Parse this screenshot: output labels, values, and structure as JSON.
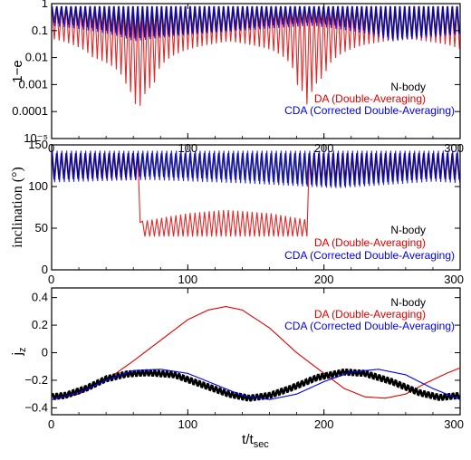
{
  "colors": {
    "nbody": "#000000",
    "da": "#e00000",
    "cda": "#0000ee"
  },
  "chart_data": [
    {
      "type": "line",
      "panel": "top",
      "ylabel": "1−e",
      "xlim": [
        0,
        300
      ],
      "ylim": [
        1e-05,
        1
      ],
      "yscale": "log",
      "x_ticks": [
        "0",
        "100",
        "200",
        "300"
      ],
      "y_ticks": [
        "1",
        "0.1",
        "0.01",
        "0.001",
        "0.0001",
        "10⁻⁵"
      ],
      "y_tick_values": [
        1,
        0.1,
        0.01,
        0.001,
        0.0001,
        1e-05
      ],
      "legend_position": "bottom-right",
      "oscillation_period_tsec": 3.5,
      "series": [
        {
          "name": "N-body",
          "color": "#000000",
          "x": [
            0,
            60,
            130,
            190,
            250,
            300
          ],
          "y_max": [
            0.8,
            0.8,
            0.8,
            0.8,
            0.8,
            0.8
          ],
          "y_min": [
            0.2,
            0.05,
            0.1,
            0.2,
            0.05,
            0.08
          ]
        },
        {
          "name": "DA (Double-Averaging)",
          "color": "#e00000",
          "x": [
            0,
            30,
            55,
            63,
            75,
            100,
            130,
            160,
            180,
            188,
            200,
            230,
            260,
            290,
            300
          ],
          "y_max": [
            0.8,
            0.8,
            0.8,
            0.8,
            0.8,
            0.8,
            0.8,
            0.8,
            0.8,
            0.8,
            0.8,
            0.8,
            0.8,
            0.8,
            0.8
          ],
          "y_min": [
            0.05,
            0.01,
            0.0008,
            2e-05,
            0.001,
            0.02,
            0.04,
            0.02,
            0.001,
            0.0001,
            0.002,
            0.03,
            0.05,
            0.03,
            0.02
          ]
        },
        {
          "name": "CDA (Corrected Double-Averaging)",
          "color": "#0000ee",
          "x": [
            0,
            60,
            130,
            190,
            250,
            300
          ],
          "y_max": [
            0.8,
            0.8,
            0.8,
            0.8,
            0.8,
            0.8
          ],
          "y_min": [
            0.15,
            0.04,
            0.09,
            0.15,
            0.04,
            0.07
          ]
        }
      ]
    },
    {
      "type": "line",
      "panel": "middle",
      "ylabel": "inclination (°)",
      "xlim": [
        0,
        300
      ],
      "ylim": [
        0,
        150
      ],
      "x_ticks": [
        "0",
        "100",
        "200",
        "300"
      ],
      "y_ticks": [
        "0",
        "50",
        "100",
        "150"
      ],
      "y_tick_values": [
        0,
        50,
        100,
        150
      ],
      "legend_position": "bottom-right",
      "oscillation_period_tsec": 3.5,
      "series": [
        {
          "name": "N-body",
          "color": "#000000",
          "x": [
            0,
            70,
            140,
            210,
            280,
            300
          ],
          "y_max": [
            140,
            140,
            140,
            140,
            140,
            140
          ],
          "y_min": [
            108,
            112,
            108,
            100,
            110,
            108
          ]
        },
        {
          "name": "DA (Double-Averaging)",
          "color": "#e00000",
          "x": [
            0,
            64,
            65,
            100,
            127,
            160,
            188,
            189,
            250,
            300
          ],
          "y_max": [
            140,
            140,
            58,
            68,
            72,
            68,
            60,
            140,
            140,
            140
          ],
          "y_min": [
            110,
            108,
            40,
            40,
            40,
            40,
            40,
            108,
            110,
            108
          ]
        },
        {
          "name": "CDA (Corrected Double-Averaging)",
          "color": "#0000ee",
          "x": [
            0,
            70,
            140,
            210,
            280,
            300
          ],
          "y_max": [
            143,
            143,
            143,
            143,
            143,
            143
          ],
          "y_min": [
            105,
            108,
            104,
            98,
            106,
            104
          ]
        }
      ]
    },
    {
      "type": "line",
      "panel": "bottom",
      "xlabel": "t/t",
      "xlabel_sub": "sec",
      "ylabel": "j",
      "ylabel_sub": "z",
      "xlim": [
        0,
        300
      ],
      "ylim": [
        -0.45,
        0.47
      ],
      "x_ticks": [
        "0",
        "100",
        "200",
        "300"
      ],
      "y_ticks": [
        "0.4",
        "0.2",
        "0",
        "−0.2",
        "−0.4"
      ],
      "y_tick_values": [
        0.4,
        0.2,
        0,
        -0.2,
        -0.4
      ],
      "legend_position": "top-right",
      "series": [
        {
          "name": "N-body",
          "color": "#000000",
          "x": [
            0,
            10,
            25,
            40,
            55,
            70,
            90,
            110,
            130,
            145,
            160,
            175,
            195,
            215,
            230,
            250,
            270,
            285,
            300
          ],
          "y": [
            -0.32,
            -0.31,
            -0.26,
            -0.19,
            -0.155,
            -0.145,
            -0.16,
            -0.23,
            -0.3,
            -0.33,
            -0.31,
            -0.26,
            -0.18,
            -0.14,
            -0.15,
            -0.21,
            -0.29,
            -0.325,
            -0.31
          ],
          "band": 0.02
        },
        {
          "name": "DA (Double-Averaging)",
          "color": "#e00000",
          "x": [
            0,
            20,
            40,
            60,
            80,
            100,
            115,
            128,
            140,
            160,
            180,
            200,
            215,
            230,
            245,
            260,
            275,
            290,
            300
          ],
          "y": [
            -0.34,
            -0.3,
            -0.2,
            -0.06,
            0.09,
            0.24,
            0.31,
            0.335,
            0.31,
            0.18,
            0.0,
            -0.15,
            -0.26,
            -0.32,
            -0.33,
            -0.3,
            -0.22,
            -0.15,
            -0.11
          ]
        },
        {
          "name": "CDA (Corrected Double-Averaging)",
          "color": "#0000ee",
          "x": [
            0,
            20,
            40,
            60,
            80,
            100,
            120,
            140,
            160,
            180,
            200,
            220,
            240,
            260,
            280,
            300
          ],
          "y": [
            -0.34,
            -0.29,
            -0.2,
            -0.13,
            -0.12,
            -0.15,
            -0.23,
            -0.31,
            -0.34,
            -0.3,
            -0.21,
            -0.14,
            -0.12,
            -0.16,
            -0.26,
            -0.34
          ]
        }
      ]
    }
  ]
}
